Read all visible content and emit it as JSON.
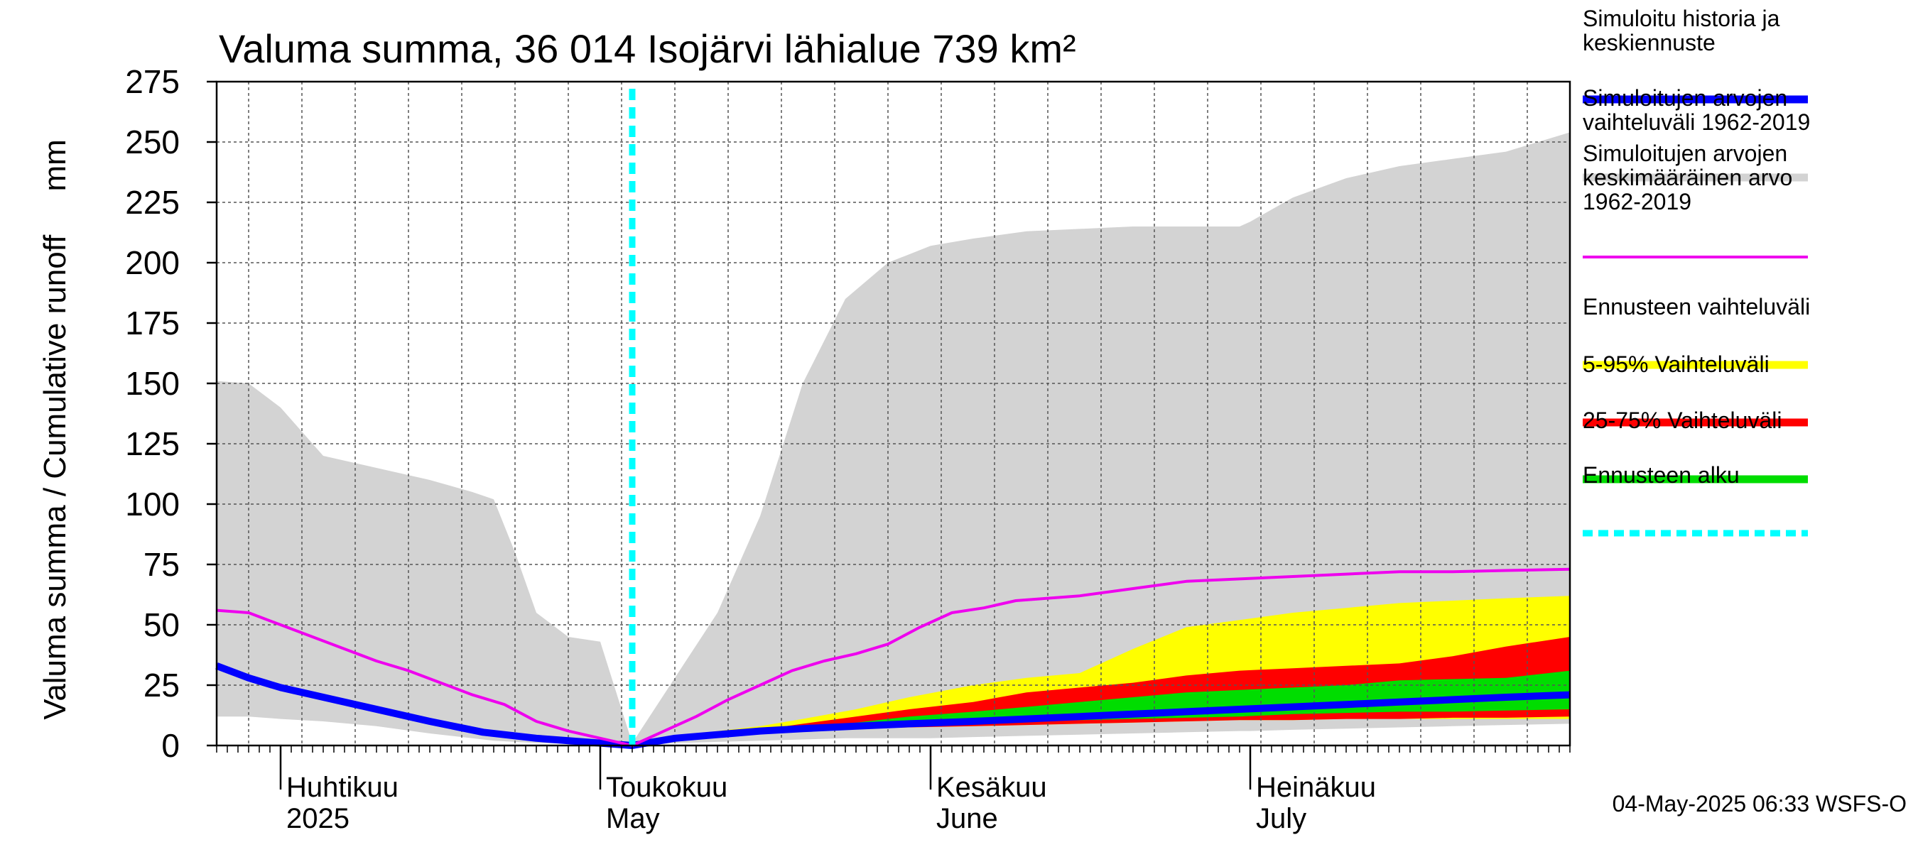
{
  "chart_data": {
    "type": "area",
    "title": "Valuma summa, 36 014 Isojärvi lähialue 739 km²",
    "ylabel": "Valuma summa / Cumulative runoff     mm",
    "ylim": [
      0,
      275
    ],
    "yticks": [
      0,
      25,
      50,
      75,
      100,
      125,
      150,
      175,
      200,
      225,
      250,
      275
    ],
    "grid": true,
    "legend_position": "right",
    "x_range": [
      "2025-03-26",
      "2025-07-31"
    ],
    "x_month_labels": [
      {
        "date": "2025-04-01",
        "fi": "Huhtikuu",
        "en": "2025"
      },
      {
        "date": "2025-05-01",
        "fi": "Toukokuu",
        "en": "May"
      },
      {
        "date": "2025-06-01",
        "fi": "Kesäkuu",
        "en": "June"
      },
      {
        "date": "2025-07-01",
        "fi": "Heinäkuu",
        "en": "July"
      }
    ],
    "forecast_start": "2025-05-04",
    "series": [
      {
        "name": "Simuloitujen arvojen vaihteluväli 1962-2019",
        "kind": "band",
        "color": "#d3d3d3",
        "x": [
          "2025-03-26",
          "2025-03-29",
          "2025-04-01",
          "2025-04-05",
          "2025-04-10",
          "2025-04-15",
          "2025-04-19",
          "2025-04-21",
          "2025-04-23",
          "2025-04-25",
          "2025-04-28",
          "2025-05-01",
          "2025-05-04",
          "2025-05-08",
          "2025-05-12",
          "2025-05-16",
          "2025-05-20",
          "2025-05-24",
          "2025-05-28",
          "2025-06-01",
          "2025-06-05",
          "2025-06-10",
          "2025-06-15",
          "2025-06-20",
          "2025-06-25",
          "2025-06-30",
          "2025-07-01",
          "2025-07-05",
          "2025-07-10",
          "2025-07-15",
          "2025-07-20",
          "2025-07-25",
          "2025-07-31"
        ],
        "upper": [
          151,
          150,
          140,
          120,
          115,
          110,
          105,
          102,
          80,
          55,
          45,
          43,
          1,
          28,
          55,
          95,
          150,
          185,
          200,
          207,
          210,
          213,
          214,
          215,
          215,
          215,
          217,
          227,
          235,
          240,
          243,
          246,
          254
        ],
        "lower": [
          12,
          12,
          11,
          10,
          8,
          5,
          3,
          2,
          1.5,
          1,
          0.8,
          0.5,
          0,
          1,
          1.5,
          2,
          2.5,
          3,
          3,
          3,
          3.5,
          4,
          4.5,
          5,
          5.5,
          6,
          6,
          6.5,
          7,
          7.5,
          8,
          8.5,
          9
        ]
      },
      {
        "name": "Ennusteen vaihteluväli",
        "kind": "band",
        "color": "#ffff00",
        "x": [
          "2025-05-04",
          "2025-05-08",
          "2025-05-12",
          "2025-05-16",
          "2025-05-20",
          "2025-05-25",
          "2025-05-30",
          "2025-06-05",
          "2025-06-10",
          "2025-06-15",
          "2025-06-20",
          "2025-06-25",
          "2025-06-30",
          "2025-07-05",
          "2025-07-10",
          "2025-07-15",
          "2025-07-20",
          "2025-07-25",
          "2025-07-31"
        ],
        "upper": [
          0,
          4,
          6,
          8,
          11,
          15,
          20,
          25,
          28,
          30,
          40,
          49,
          52,
          55,
          57,
          59,
          60,
          61,
          62
        ],
        "lower": [
          0,
          3,
          5,
          6,
          6.5,
          7,
          7.5,
          8,
          8.5,
          9,
          9.5,
          10,
          10.5,
          10.5,
          11,
          11,
          11,
          11,
          11
        ]
      },
      {
        "name": "5-95% Vaihteluväli",
        "kind": "band",
        "color": "#ff0000",
        "x": [
          "2025-05-04",
          "2025-05-08",
          "2025-05-12",
          "2025-05-16",
          "2025-05-20",
          "2025-05-25",
          "2025-05-30",
          "2025-06-05",
          "2025-06-10",
          "2025-06-15",
          "2025-06-20",
          "2025-06-25",
          "2025-06-30",
          "2025-07-05",
          "2025-07-10",
          "2025-07-15",
          "2025-07-20",
          "2025-07-25",
          "2025-07-31"
        ],
        "upper": [
          0,
          4,
          5.5,
          6.5,
          9,
          12,
          15,
          18,
          22,
          24,
          26,
          29,
          31,
          32,
          33,
          34,
          37,
          41,
          45
        ],
        "lower": [
          0,
          3.5,
          5,
          6,
          6.5,
          7,
          7.5,
          8,
          8.5,
          9,
          9.5,
          10,
          10.5,
          10.5,
          11,
          11,
          11.5,
          11.5,
          12
        ]
      },
      {
        "name": "25-75% Vaihteluväli",
        "kind": "band",
        "color": "#00dd00",
        "x": [
          "2025-05-04",
          "2025-05-08",
          "2025-05-12",
          "2025-05-16",
          "2025-05-20",
          "2025-05-25",
          "2025-05-30",
          "2025-06-05",
          "2025-06-10",
          "2025-06-15",
          "2025-06-20",
          "2025-06-25",
          "2025-06-30",
          "2025-07-05",
          "2025-07-10",
          "2025-07-15",
          "2025-07-20",
          "2025-07-25",
          "2025-07-31"
        ],
        "upper": [
          0,
          4,
          5,
          6,
          7.5,
          9.5,
          12,
          14,
          16,
          18,
          20,
          22,
          23,
          24,
          25,
          27,
          27.5,
          28,
          31
        ],
        "lower": [
          0,
          3.5,
          5,
          6,
          7,
          7.5,
          8,
          9,
          10,
          10.5,
          11,
          11.5,
          12,
          13,
          13.5,
          14,
          14,
          14.5,
          15
        ]
      },
      {
        "name": "Simuloitu historia ja keskiennuste",
        "kind": "line",
        "color": "#0000ff",
        "x": [
          "2025-03-26",
          "2025-03-29",
          "2025-04-01",
          "2025-04-05",
          "2025-04-10",
          "2025-04-15",
          "2025-04-20",
          "2025-04-25",
          "2025-05-01",
          "2025-05-04",
          "2025-05-08",
          "2025-05-12",
          "2025-05-16",
          "2025-05-20",
          "2025-05-25",
          "2025-05-30",
          "2025-06-05",
          "2025-06-10",
          "2025-06-15",
          "2025-06-20",
          "2025-06-25",
          "2025-06-30",
          "2025-07-05",
          "2025-07-10",
          "2025-07-15",
          "2025-07-20",
          "2025-07-25",
          "2025-07-31"
        ],
        "y": [
          33,
          28,
          24,
          20,
          15,
          10,
          5.5,
          3,
          1,
          0,
          3,
          4.5,
          6,
          7,
          8,
          9,
          10,
          11,
          12,
          13,
          14,
          15,
          16,
          17,
          18,
          19,
          20,
          21
        ]
      },
      {
        "name": "Simuloitujen arvojen keskimääräinen arvo 1962-2019",
        "kind": "line",
        "color": "#ee00ee",
        "x": [
          "2025-03-26",
          "2025-03-29",
          "2025-04-01",
          "2025-04-04",
          "2025-04-07",
          "2025-04-10",
          "2025-04-13",
          "2025-04-16",
          "2025-04-19",
          "2025-04-22",
          "2025-04-25",
          "2025-04-28",
          "2025-05-01",
          "2025-05-04",
          "2025-05-07",
          "2025-05-10",
          "2025-05-13",
          "2025-05-16",
          "2025-05-19",
          "2025-05-22",
          "2025-05-25",
          "2025-05-28",
          "2025-05-31",
          "2025-06-03",
          "2025-06-06",
          "2025-06-09",
          "2025-06-15",
          "2025-06-20",
          "2025-06-25",
          "2025-06-30",
          "2025-07-05",
          "2025-07-10",
          "2025-07-15",
          "2025-07-20",
          "2025-07-25",
          "2025-07-31"
        ],
        "y": [
          56,
          55,
          50,
          45,
          40,
          35,
          31,
          26,
          21,
          17,
          10,
          6,
          3,
          0,
          6,
          12,
          19,
          25,
          31,
          35,
          38,
          42,
          49,
          55,
          57,
          60,
          62,
          65,
          68,
          69,
          70,
          71,
          72,
          72,
          72.5,
          73
        ]
      }
    ],
    "legend": [
      {
        "label": "Simuloitu historia ja keskiennuste",
        "color": "#0000ff",
        "style": "line"
      },
      {
        "label": "Simuloitujen arvojen vaihteluväli 1962-2019",
        "color": "#d3d3d3",
        "style": "line"
      },
      {
        "label": "Simuloitujen arvojen keskimääräinen arvo 1962-2019",
        "color": "#ee00ee",
        "style": "line"
      },
      {
        "label": "Ennusteen vaihteluväli",
        "color": "#ffff00",
        "style": "line"
      },
      {
        "label": "5-95% Vaihteluväli",
        "color": "#ff0000",
        "style": "line"
      },
      {
        "label": "25-75% Vaihteluväli",
        "color": "#00dd00",
        "style": "line"
      },
      {
        "label": "Ennusteen alku",
        "color": "#00ffff",
        "style": "dashed"
      }
    ],
    "footer": "04-May-2025 06:33 WSFS-O"
  }
}
